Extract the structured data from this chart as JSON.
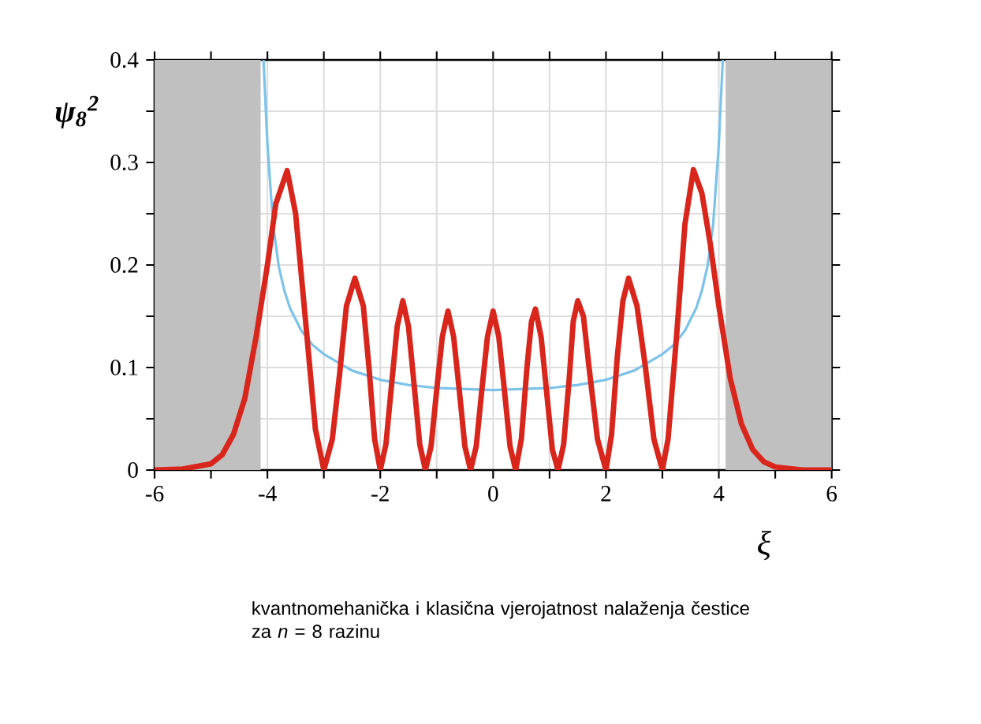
{
  "chart_data": {
    "type": "line",
    "ylabel": "ψ$_{8}$$^{2}$",
    "xlabel": "ξ",
    "annotations": [
      "kvantnomehanička i klasična vjerojatnost nalaženja čestice za *n* = 8 razinu"
    ],
    "xlim": [
      -6,
      6
    ],
    "ylim": [
      0,
      0.4
    ],
    "xticks": [
      -6,
      {
        "value": -5,
        "label": null
      },
      -4,
      {
        "value": -3,
        "label": null
      },
      -2,
      {
        "value": -1,
        "label": null
      },
      0,
      {
        "value": 1,
        "label": null
      },
      2,
      {
        "value": 3,
        "label": null
      },
      4,
      {
        "value": 5,
        "label": null
      },
      6
    ],
    "yticks": [
      0,
      {
        "value": 0.05,
        "label": null
      },
      0.1,
      {
        "value": 0.15,
        "label": null
      },
      0.2,
      {
        "value": 0.25,
        "label": null
      },
      0.3,
      {
        "value": 0.35,
        "label": null
      },
      0.4
    ],
    "grid": true,
    "bands": [
      {
        "axis": "x",
        "from": -6,
        "to": -4.12,
        "color": "#c0c0c0"
      },
      {
        "axis": "x",
        "from": 4.12,
        "to": 6,
        "color": "#c0c0c0"
      }
    ],
    "series": [
      {
        "color": "#7cc3ea",
        "x": [
          -4.07,
          -4.0,
          -3.9,
          -3.8,
          -3.7,
          -3.6,
          -3.4,
          -3.2,
          -3.0,
          -2.5,
          -2.0,
          -1.5,
          -1.0,
          0,
          1.0,
          1.5,
          2.0,
          2.5,
          3.0,
          3.2,
          3.4,
          3.6,
          3.7,
          3.8,
          3.9,
          4.0,
          4.07
        ],
        "values": [
          0.4,
          0.318,
          0.24,
          0.199,
          0.175,
          0.158,
          0.136,
          0.122,
          0.113,
          0.097,
          0.088,
          0.083,
          0.08,
          0.078,
          0.08,
          0.083,
          0.088,
          0.097,
          0.113,
          0.122,
          0.136,
          0.158,
          0.175,
          0.199,
          0.24,
          0.318,
          0.4
        ]
      },
      {
        "color": "#d8261c",
        "x": [
          -6,
          -5.5,
          -5,
          -4.8,
          -4.6,
          -4.4,
          -4.2,
          -4.0,
          -3.85,
          -3.65,
          -3.5,
          -3.325,
          -3.15,
          -3.0,
          -2.85,
          -2.72,
          -2.6,
          -2.45,
          -2.3,
          -2.2,
          -2.1,
          -2.0,
          -1.9,
          -1.8,
          -1.7,
          -1.6,
          -1.5,
          -1.4,
          -1.3,
          -1.2,
          -1.1,
          -1.0,
          -0.9,
          -0.8,
          -0.7,
          -0.6,
          -0.5,
          -0.4,
          -0.3,
          -0.2,
          -0.1,
          0,
          0.1,
          0.2,
          0.3,
          0.4,
          0.5,
          0.6,
          0.68,
          0.75,
          0.85,
          0.95,
          1.05,
          1.15,
          1.25,
          1.35,
          1.42,
          1.5,
          1.6,
          1.7,
          1.85,
          2.0,
          2.1,
          2.2,
          2.3,
          2.4,
          2.55,
          2.7,
          2.85,
          3.0,
          3.1,
          3.25,
          3.4,
          3.55,
          3.7,
          3.85,
          4.0,
          4.2,
          4.4,
          4.6,
          4.8,
          5.0,
          5.5,
          6
        ],
        "values": [
          0,
          0.001,
          0.006,
          0.015,
          0.035,
          0.07,
          0.13,
          0.2,
          0.26,
          0.292,
          0.25,
          0.146,
          0.04,
          0,
          0.03,
          0.094,
          0.16,
          0.187,
          0.16,
          0.1,
          0.03,
          0,
          0.025,
          0.083,
          0.14,
          0.165,
          0.14,
          0.083,
          0.025,
          0,
          0.023,
          0.078,
          0.13,
          0.155,
          0.13,
          0.078,
          0.023,
          0,
          0.023,
          0.078,
          0.13,
          0.155,
          0.13,
          0.078,
          0.023,
          0,
          0.03,
          0.1,
          0.145,
          0.157,
          0.13,
          0.075,
          0.02,
          0,
          0.025,
          0.09,
          0.145,
          0.165,
          0.15,
          0.1,
          0.03,
          0,
          0.035,
          0.11,
          0.165,
          0.187,
          0.16,
          0.1,
          0.03,
          0,
          0.03,
          0.13,
          0.24,
          0.293,
          0.27,
          0.22,
          0.16,
          0.09,
          0.045,
          0.02,
          0.008,
          0.003,
          0,
          0
        ]
      }
    ]
  }
}
